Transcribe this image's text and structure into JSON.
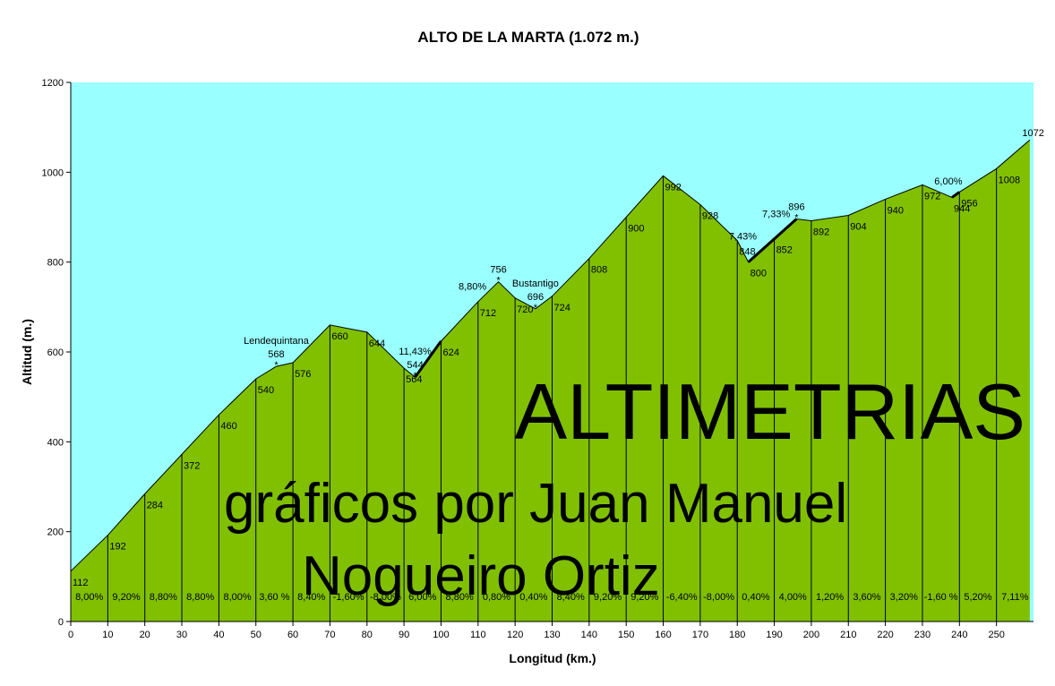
{
  "chart_data": {
    "type": "area",
    "title": "ALTO DE LA MARTA (1.072 m.)",
    "xlabel": "Longitud (km.)",
    "ylabel": "Altitud (m.)",
    "xlim": [
      0,
      260
    ],
    "ylim": [
      0,
      1200
    ],
    "xticks": [
      0,
      10,
      20,
      30,
      40,
      50,
      60,
      70,
      80,
      90,
      100,
      110,
      120,
      130,
      140,
      150,
      160,
      170,
      180,
      190,
      200,
      210,
      220,
      230,
      240,
      250
    ],
    "yticks": [
      0,
      200,
      400,
      600,
      800,
      1000,
      1200
    ],
    "colors": {
      "sky": "#99FFFF",
      "terrain": "#80C000",
      "line": "#000000"
    },
    "profile": [
      {
        "x": 0,
        "y": 112
      },
      {
        "x": 10,
        "y": 192
      },
      {
        "x": 20,
        "y": 284
      },
      {
        "x": 30,
        "y": 372
      },
      {
        "x": 40,
        "y": 460
      },
      {
        "x": 50,
        "y": 540
      },
      {
        "x": 55.5,
        "y": 568
      },
      {
        "x": 60,
        "y": 576
      },
      {
        "x": 70,
        "y": 660
      },
      {
        "x": 80,
        "y": 644
      },
      {
        "x": 90,
        "y": 564
      },
      {
        "x": 93,
        "y": 544
      },
      {
        "x": 100,
        "y": 624
      },
      {
        "x": 110,
        "y": 712
      },
      {
        "x": 115.5,
        "y": 756
      },
      {
        "x": 120,
        "y": 720
      },
      {
        "x": 125.5,
        "y": 696
      },
      {
        "x": 130,
        "y": 724
      },
      {
        "x": 140,
        "y": 808
      },
      {
        "x": 150,
        "y": 900
      },
      {
        "x": 160,
        "y": 992
      },
      {
        "x": 170,
        "y": 928
      },
      {
        "x": 180,
        "y": 848
      },
      {
        "x": 183,
        "y": 800
      },
      {
        "x": 190,
        "y": 852
      },
      {
        "x": 196,
        "y": 896
      },
      {
        "x": 200,
        "y": 892
      },
      {
        "x": 210,
        "y": 904
      },
      {
        "x": 220,
        "y": 940
      },
      {
        "x": 230,
        "y": 972
      },
      {
        "x": 238,
        "y": 944
      },
      {
        "x": 240,
        "y": 956
      },
      {
        "x": 250,
        "y": 1008
      },
      {
        "x": 259,
        "y": 1072
      }
    ],
    "altitude_labels": [
      {
        "x": 0,
        "y": 112,
        "text": "112"
      },
      {
        "x": 10,
        "y": 192,
        "text": "192"
      },
      {
        "x": 20,
        "y": 284,
        "text": "284"
      },
      {
        "x": 30,
        "y": 372,
        "text": "372"
      },
      {
        "x": 40,
        "y": 460,
        "text": "460"
      },
      {
        "x": 50,
        "y": 540,
        "text": "540"
      },
      {
        "x": 60,
        "y": 576,
        "text": "576"
      },
      {
        "x": 70,
        "y": 660,
        "text": "660"
      },
      {
        "x": 80,
        "y": 644,
        "text": "644"
      },
      {
        "x": 90,
        "y": 564,
        "text": "564"
      },
      {
        "x": 100,
        "y": 624,
        "text": "624"
      },
      {
        "x": 110,
        "y": 712,
        "text": "712"
      },
      {
        "x": 120,
        "y": 720,
        "text": "720"
      },
      {
        "x": 130,
        "y": 724,
        "text": "724"
      },
      {
        "x": 140,
        "y": 808,
        "text": "808"
      },
      {
        "x": 150,
        "y": 900,
        "text": "900"
      },
      {
        "x": 160,
        "y": 992,
        "text": "992"
      },
      {
        "x": 170,
        "y": 928,
        "text": "928"
      },
      {
        "x": 180,
        "y": 848,
        "text": "848"
      },
      {
        "x": 183,
        "y": 800,
        "text": "800"
      },
      {
        "x": 190,
        "y": 852,
        "text": "852"
      },
      {
        "x": 200,
        "y": 892,
        "text": "892"
      },
      {
        "x": 210,
        "y": 904,
        "text": "904"
      },
      {
        "x": 220,
        "y": 940,
        "text": "940"
      },
      {
        "x": 230,
        "y": 972,
        "text": "972"
      },
      {
        "x": 238,
        "y": 944,
        "text": "944"
      },
      {
        "x": 240,
        "y": 956,
        "text": "956"
      },
      {
        "x": 250,
        "y": 1008,
        "text": "1008"
      },
      {
        "x": 259,
        "y": 1072,
        "text": "1072"
      }
    ],
    "peaks": [
      {
        "x": 55.5,
        "y": 568,
        "name": "Lendequintana",
        "altitude": "568"
      },
      {
        "x": 93,
        "y": 544,
        "name": "11,43%",
        "altitude": "544"
      },
      {
        "x": 115.5,
        "y": 756,
        "name": "",
        "altitude": "756"
      },
      {
        "x": 125.5,
        "y": 696,
        "name": "Bustantigo",
        "altitude": "696"
      },
      {
        "x": 196,
        "y": 896,
        "name": "",
        "altitude": "896"
      }
    ],
    "gradient_callouts": [
      {
        "x": 108.5,
        "y": 739,
        "text": "8,80%"
      },
      {
        "x": 181.5,
        "y": 850,
        "text": "7,43%"
      },
      {
        "x": 190.5,
        "y": 900,
        "text": "7,33%"
      },
      {
        "x": 237,
        "y": 973,
        "text": "6,00%"
      }
    ],
    "segment_gradients": [
      {
        "x": 5,
        "text": "8,00%"
      },
      {
        "x": 15,
        "text": "9,20%"
      },
      {
        "x": 25,
        "text": "8,80%"
      },
      {
        "x": 35,
        "text": "8,80%"
      },
      {
        "x": 45,
        "text": "8,00%"
      },
      {
        "x": 55,
        "text": "3,60 %"
      },
      {
        "x": 65,
        "text": "8,40%"
      },
      {
        "x": 75,
        "text": "-1,60%"
      },
      {
        "x": 85,
        "text": "-8,00%"
      },
      {
        "x": 95,
        "text": "6,00%"
      },
      {
        "x": 105,
        "text": "8,80%"
      },
      {
        "x": 115,
        "text": "0,80%"
      },
      {
        "x": 125,
        "text": "0,40%"
      },
      {
        "x": 135,
        "text": "8,40%"
      },
      {
        "x": 145,
        "text": "9,20%"
      },
      {
        "x": 155,
        "text": "9,20%"
      },
      {
        "x": 165,
        "text": "-6,40%"
      },
      {
        "x": 175,
        "text": "-8,00%"
      },
      {
        "x": 185,
        "text": "0,40%"
      },
      {
        "x": 195,
        "text": "4,00%"
      },
      {
        "x": 205,
        "text": "1,20%"
      },
      {
        "x": 215,
        "text": "3,60%"
      },
      {
        "x": 225,
        "text": "3,20%"
      },
      {
        "x": 235,
        "text": "-1,60 %"
      },
      {
        "x": 245,
        "text": "5,20%"
      },
      {
        "x": 255,
        "text": "7,11%"
      }
    ],
    "segment_gradient_y": 48,
    "steep_segments": [
      {
        "from": [
          93,
          544
        ],
        "to": [
          100,
          624
        ]
      },
      {
        "from": [
          183,
          800
        ],
        "to": [
          196,
          896
        ]
      },
      {
        "from": [
          238,
          944
        ],
        "to": [
          240,
          956
        ]
      }
    ]
  },
  "watermark": {
    "line1": "ALTIMETRIAS",
    "line2": "gráficos por Juan Manuel",
    "line3": "Nogueiro Ortiz"
  }
}
